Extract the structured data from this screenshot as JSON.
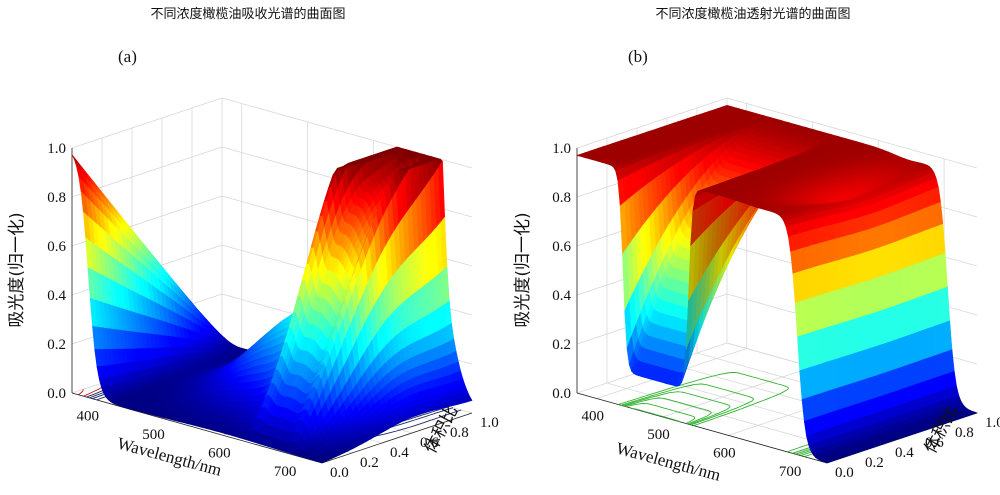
{
  "chart_data": [
    {
      "id": "a",
      "type": "surface",
      "panel_label": "(a)",
      "title": "不同浓度橄榄油吸收光谱的曲面图",
      "zlabel": "吸光度(归一化)",
      "xlabel": "Wavelength/nm",
      "ylabel": "体积比",
      "x_ticks": [
        "400",
        "500",
        "600",
        "700"
      ],
      "y_ticks": [
        "0.0",
        "0.2",
        "0.4",
        "0.6",
        "0.8",
        "1.0"
      ],
      "z_ticks": [
        "0.0",
        "0.2",
        "0.4",
        "0.6",
        "0.8",
        "1.0"
      ],
      "xlim": [
        370,
        750
      ],
      "ylim": [
        0,
        1
      ],
      "zlim": [
        0,
        1
      ],
      "colormap": "jet",
      "contour_color_strong": "#cc1111",
      "contour_color": "#1a2a6a",
      "features": {
        "uv_edge_nm": 395,
        "edge_level_at_ratio_0": 1.0,
        "peak_nm": 670,
        "peak_height_at_ratio_1": 1.0,
        "side_peaks_nm": [
          640,
          700
        ],
        "final_peak_nm": 670,
        "final_peak_height": 0.45
      }
    },
    {
      "id": "b",
      "type": "surface",
      "panel_label": "(b)",
      "title": "不同浓度橄榄油透射光谱的曲面图",
      "zlabel": "吸光度(归一化)",
      "xlabel": "Wavelength/nm",
      "ylabel": "体积比",
      "x_ticks": [
        "400",
        "500",
        "600",
        "700"
      ],
      "y_ticks": [
        "0.0",
        "0.2",
        "0.4",
        "0.6",
        "0.8",
        "1.0"
      ],
      "z_ticks": [
        "0.0",
        "0.2",
        "0.4",
        "0.6",
        "0.8",
        "1.0"
      ],
      "xlim": [
        370,
        750
      ],
      "ylim": [
        0,
        1
      ],
      "zlim": [
        0,
        1
      ],
      "colormap": "jet",
      "contour_color": "#2fb32f",
      "features": {
        "plateau_level": 0.97,
        "dip_start_nm": 440,
        "dip_end_nm": 540,
        "dip_level": 0.1,
        "cutoff_nm": 705
      }
    }
  ]
}
